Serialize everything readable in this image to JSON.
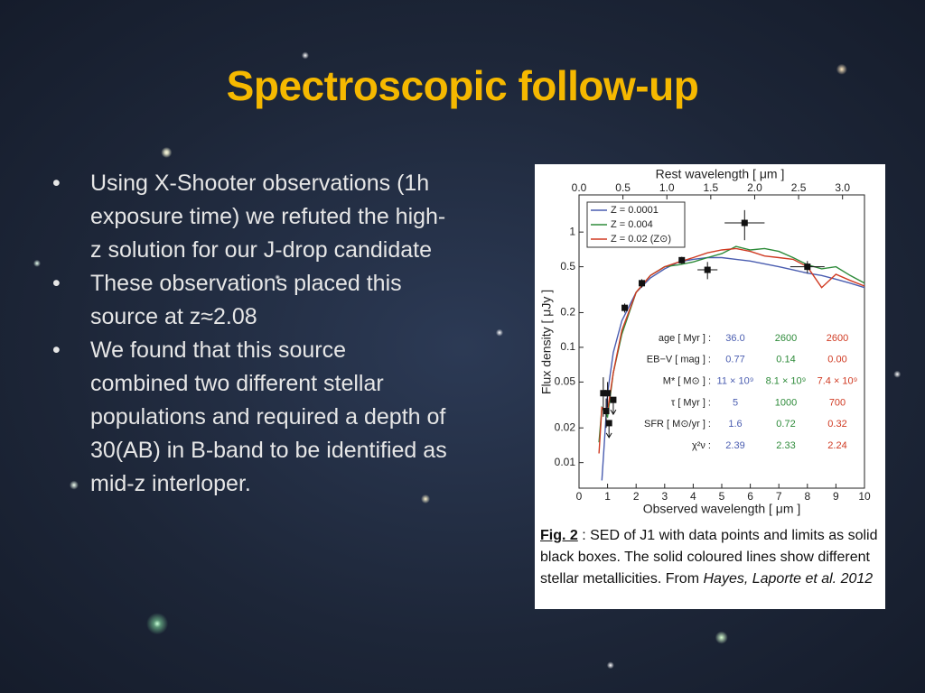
{
  "title": "Spectroscopic follow-up",
  "bullets": [
    "Using X-Shooter observations (1h exposure time) we refuted the high-z solution for our J-drop candidate",
    "These observations placed this source at z≈2.08",
    "We found that this source combined two different stellar populations and required a depth of 30(AB) in B-band to be identified as mid-z interloper."
  ],
  "chart_data": {
    "type": "line",
    "x_label": "Observed wavelength [ μm ]",
    "x2_label": "Rest wavelength [ μm ]",
    "y_label": "Flux density [ μJy ]",
    "xlim": [
      0,
      10
    ],
    "xticks": [
      0,
      1,
      2,
      3,
      4,
      5,
      6,
      7,
      8,
      9,
      10
    ],
    "x2lim": [
      0,
      3.25
    ],
    "x2ticks": [
      {
        "value": 0,
        "label": "0.0"
      },
      0.5,
      {
        "value": 1,
        "label": "1.0"
      },
      1.5,
      {
        "value": 2,
        "label": "2.0"
      },
      2.5,
      {
        "value": 3,
        "label": "3.0"
      }
    ],
    "ylim": [
      0.006,
      2.1
    ],
    "yticks": [
      0.01,
      0.02,
      0.05,
      0.1,
      0.2,
      0.5,
      1
    ],
    "log_y": true,
    "legend": "upper left",
    "x": [
      0.7,
      0.8,
      1.0,
      1.2,
      1.5,
      2,
      2.5,
      3,
      3.5,
      4,
      4.5,
      5,
      5.5,
      6,
      6.5,
      7,
      7.5,
      8,
      8.5,
      9,
      9.5,
      10
    ],
    "series": [
      {
        "name": "Z = 0.0001",
        "color": "#4a5db0",
        "values": [
          null,
          0.007,
          0.04,
          0.09,
          0.17,
          0.3,
          0.4,
          0.48,
          0.55,
          0.58,
          0.6,
          0.6,
          0.58,
          0.56,
          0.53,
          0.5,
          0.47,
          0.44,
          0.42,
          0.39,
          0.36,
          0.33
        ]
      },
      {
        "name": "Z = 0.004",
        "color": "#2e8b3a",
        "values": [
          0.015,
          0.03,
          0.025,
          0.06,
          0.13,
          0.3,
          0.42,
          0.5,
          0.52,
          0.55,
          0.6,
          0.65,
          0.75,
          0.7,
          0.72,
          0.68,
          0.6,
          0.52,
          0.48,
          0.5,
          0.42,
          0.36
        ]
      },
      {
        "name": "Z = 0.02 (Z⊙)",
        "color": "#d03a22",
        "values": [
          0.012,
          0.03,
          0.028,
          0.06,
          0.14,
          0.3,
          0.42,
          0.5,
          0.55,
          0.6,
          0.66,
          0.7,
          0.72,
          0.68,
          0.62,
          0.6,
          0.58,
          0.5,
          0.33,
          0.43,
          0.38,
          0.34
        ]
      }
    ],
    "points": {
      "color": "#111111",
      "x": [
        0.85,
        1.0,
        0.95,
        1.05,
        1.2,
        1.6,
        2.2,
        3.6,
        4.5,
        5.8,
        8.0
      ],
      "values": [
        0.04,
        0.04,
        0.028,
        0.022,
        0.035,
        0.22,
        0.36,
        0.57,
        0.47,
        1.2,
        0.5
      ],
      "yerr": [
        0.015,
        0.01,
        0.008,
        null,
        null,
        0.02,
        0.03,
        0.04,
        0.08,
        0.35,
        0.06
      ],
      "xerr": [
        null,
        null,
        null,
        null,
        null,
        null,
        null,
        null,
        0.35,
        0.7,
        0.6
      ],
      "upper_limit": [
        false,
        false,
        false,
        true,
        true,
        false,
        false,
        false,
        false,
        false,
        false
      ]
    },
    "fit_table": [
      {
        "label": "age [ Myr ] :",
        "values": [
          "36.0",
          "2600",
          "2600"
        ]
      },
      {
        "label": "EB−V [ mag ] :",
        "values": [
          "0.77",
          "0.14",
          "0.00"
        ]
      },
      {
        "label": "M* [ M⊙ ] :",
        "values": [
          "11 × 10⁹",
          "8.1 × 10⁹",
          "7.4 × 10⁹"
        ]
      },
      {
        "label": "τ [ Myr ] :",
        "values": [
          "5",
          "1000",
          "700"
        ]
      },
      {
        "label": "SFR [ M⊙/yr ] :",
        "values": [
          "1.6",
          "0.72",
          "0.32"
        ]
      },
      {
        "label": "χ²ν :",
        "values": [
          "2.39",
          "2.33",
          "2.24"
        ]
      }
    ]
  },
  "caption": {
    "label": "Fig. 2",
    "text": ": SED of J1 with data points and limits as solid black boxes. The solid coloured lines show different stellar metallicities. From",
    "reference": "Hayes, Laporte et al. 2012"
  }
}
